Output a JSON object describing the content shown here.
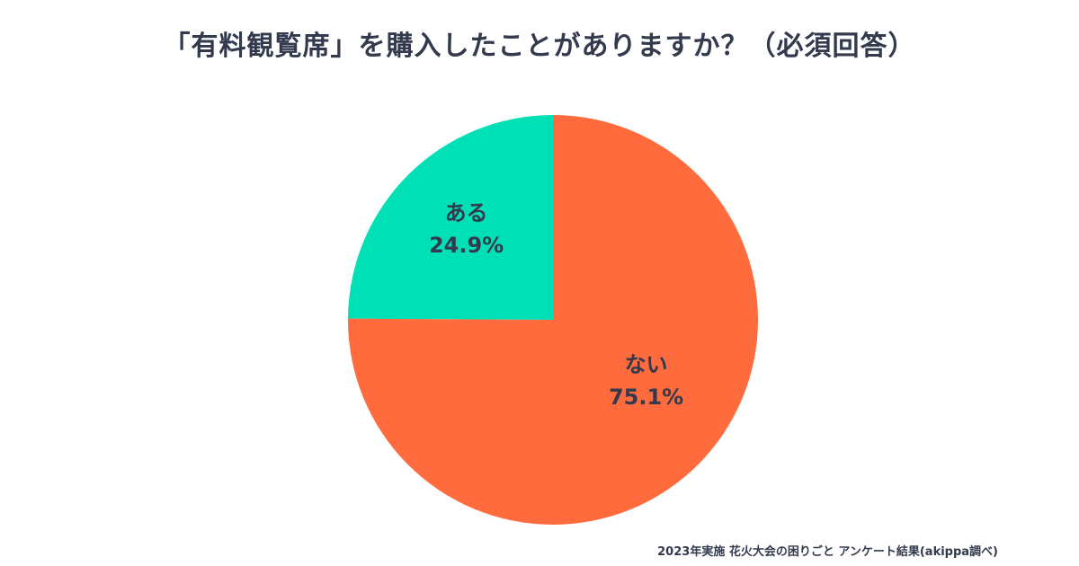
{
  "chart_data": {
    "type": "pie",
    "title": "「有料観覧席」を購入したことがありますか？（必須回答）",
    "slices": [
      {
        "label": "ある",
        "value": 24.9,
        "value_label": "24.9%",
        "color": "#00e0b6"
      },
      {
        "label": "ない",
        "value": 75.1,
        "value_label": "75.1%",
        "color": "#ff6b3d"
      }
    ],
    "start": "12 o'clock, counter-clockwise",
    "legend": "none"
  },
  "footer": {
    "source": "2023年実施 花火大会の困りごと アンケート結果(akippa調べ)"
  }
}
